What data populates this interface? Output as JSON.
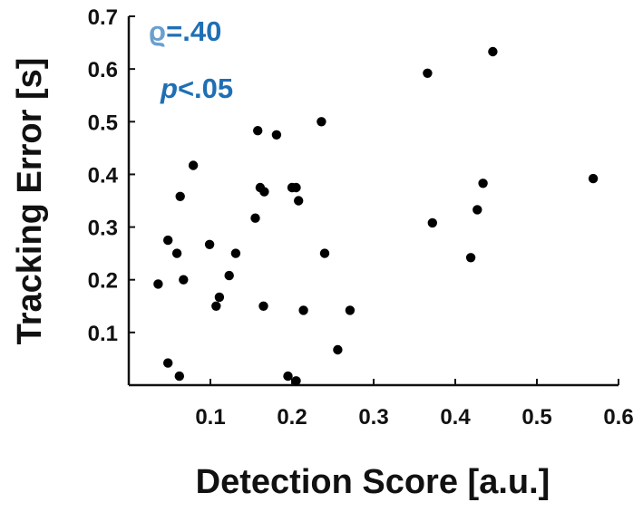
{
  "chart_data": {
    "type": "scatter",
    "title": "",
    "xlabel": "Detection Score [a.u.]",
    "ylabel": "Tracking Error [s]",
    "xlim": [
      0.0,
      0.6
    ],
    "ylim": [
      0.0,
      0.7
    ],
    "xticks": [
      0.1,
      0.2,
      0.3,
      0.4,
      0.5,
      0.6
    ],
    "xtick_labels": [
      "0.1",
      "0.2",
      "0.3",
      "0.4",
      "0.5",
      "0.6"
    ],
    "yticks": [
      0.1,
      0.2,
      0.3,
      0.4,
      0.5,
      0.6,
      0.7
    ],
    "ytick_labels": [
      "0.1",
      "0.2",
      "0.3",
      "0.4",
      "0.5",
      "0.6",
      "0.7"
    ],
    "grid": false,
    "legend": "none",
    "marker_color": "#000000",
    "annotations": [
      {
        "prefix": "ϱ",
        "text": "=.40",
        "color": "#1f6fb4",
        "prefix_color": "#6a9fd0"
      },
      {
        "prefix": "p",
        "text": "<.05",
        "color": "#1f6fb4",
        "prefix_color": "#1f6fb4",
        "prefix_italic": true
      }
    ],
    "points": [
      {
        "x": 0.446,
        "y": 0.633
      },
      {
        "x": 0.366,
        "y": 0.592
      },
      {
        "x": 0.236,
        "y": 0.5
      },
      {
        "x": 0.158,
        "y": 0.483
      },
      {
        "x": 0.181,
        "y": 0.475
      },
      {
        "x": 0.079,
        "y": 0.417
      },
      {
        "x": 0.569,
        "y": 0.392
      },
      {
        "x": 0.434,
        "y": 0.383
      },
      {
        "x": 0.161,
        "y": 0.375
      },
      {
        "x": 0.2,
        "y": 0.375
      },
      {
        "x": 0.205,
        "y": 0.375
      },
      {
        "x": 0.166,
        "y": 0.367
      },
      {
        "x": 0.063,
        "y": 0.358
      },
      {
        "x": 0.208,
        "y": 0.35
      },
      {
        "x": 0.427,
        "y": 0.333
      },
      {
        "x": 0.155,
        "y": 0.317
      },
      {
        "x": 0.372,
        "y": 0.308
      },
      {
        "x": 0.048,
        "y": 0.275
      },
      {
        "x": 0.099,
        "y": 0.267
      },
      {
        "x": 0.059,
        "y": 0.25
      },
      {
        "x": 0.131,
        "y": 0.25
      },
      {
        "x": 0.24,
        "y": 0.25
      },
      {
        "x": 0.419,
        "y": 0.242
      },
      {
        "x": 0.123,
        "y": 0.208
      },
      {
        "x": 0.067,
        "y": 0.2
      },
      {
        "x": 0.036,
        "y": 0.192
      },
      {
        "x": 0.111,
        "y": 0.167
      },
      {
        "x": 0.107,
        "y": 0.15
      },
      {
        "x": 0.165,
        "y": 0.15
      },
      {
        "x": 0.214,
        "y": 0.142
      },
      {
        "x": 0.271,
        "y": 0.142
      },
      {
        "x": 0.256,
        "y": 0.067
      },
      {
        "x": 0.048,
        "y": 0.042
      },
      {
        "x": 0.062,
        "y": 0.017
      },
      {
        "x": 0.195,
        "y": 0.017
      },
      {
        "x": 0.205,
        "y": 0.008
      }
    ]
  }
}
